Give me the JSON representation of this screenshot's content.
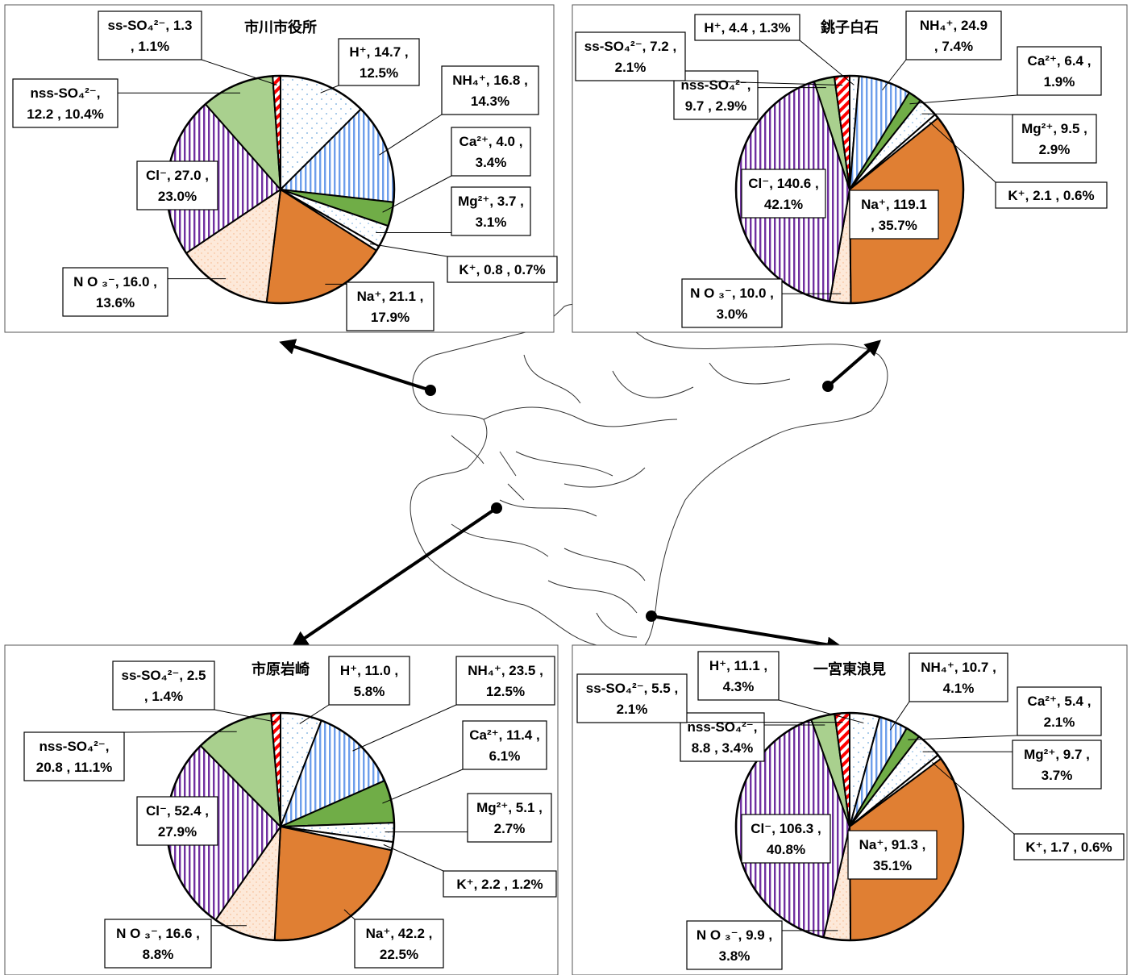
{
  "colors": {
    "H": "#ffffff",
    "NH4": "#9dc3e6",
    "Ca": "#70ad47",
    "Mg": "#ffffff",
    "K": "#ffffff",
    "Na": "#e07f33",
    "NO3": "#fde9d9",
    "Cl": "#7030a0",
    "nss": "#a9d08e",
    "ss": "#ff0000"
  },
  "chart_data": [
    {
      "type": "pie",
      "title": "市川市役所",
      "slices": [
        {
          "key": "H",
          "value": 14.7,
          "pct": 12.5,
          "lines": [
            "H⁺, 14.7 ,",
            "12.5%"
          ]
        },
        {
          "key": "NH4",
          "value": 16.8,
          "pct": 14.3,
          "lines": [
            "NH₄⁺, 16.8 ,",
            "14.3%"
          ]
        },
        {
          "key": "Ca",
          "value": 4.0,
          "pct": 3.4,
          "lines": [
            "Ca²⁺, 4.0 ,",
            "3.4%"
          ]
        },
        {
          "key": "Mg",
          "value": 3.7,
          "pct": 3.1,
          "lines": [
            "Mg²⁺, 3.7 ,",
            "3.1%"
          ]
        },
        {
          "key": "K",
          "value": 0.8,
          "pct": 0.7,
          "lines": [
            "K⁺, 0.8 , 0.7%"
          ]
        },
        {
          "key": "Na",
          "value": 21.1,
          "pct": 17.9,
          "lines": [
            "Na⁺, 21.1 ,",
            "17.9%"
          ]
        },
        {
          "key": "NO3",
          "value": 16.0,
          "pct": 13.6,
          "lines": [
            "N O ₃⁻, 16.0 ,",
            "13.6%"
          ]
        },
        {
          "key": "Cl",
          "value": 27.0,
          "pct": 23.0,
          "lines": [
            "Cl⁻, 27.0 ,",
            "23.0%"
          ]
        },
        {
          "key": "nss",
          "value": 12.2,
          "pct": 10.4,
          "lines": [
            "nss-SO₄²⁻,",
            "12.2 , 10.4%"
          ]
        },
        {
          "key": "ss",
          "value": 1.3,
          "pct": 1.1,
          "lines": [
            "ss-SO₄²⁻, 1.3",
            ", 1.1%"
          ]
        }
      ]
    },
    {
      "type": "pie",
      "title": "銚子白石",
      "slices": [
        {
          "key": "H",
          "value": 4.4,
          "pct": 1.3,
          "lines": [
            "H⁺, 4.4 , 1.3%"
          ]
        },
        {
          "key": "NH4",
          "value": 24.9,
          "pct": 7.4,
          "lines": [
            "NH₄⁺, 24.9",
            ", 7.4%"
          ]
        },
        {
          "key": "Ca",
          "value": 6.4,
          "pct": 1.9,
          "lines": [
            "Ca²⁺, 6.4 ,",
            "1.9%"
          ]
        },
        {
          "key": "Mg",
          "value": 9.5,
          "pct": 2.9,
          "lines": [
            "Mg²⁺, 9.5 ,",
            "2.9%"
          ]
        },
        {
          "key": "K",
          "value": 2.1,
          "pct": 0.6,
          "lines": [
            "K⁺, 2.1 , 0.6%"
          ]
        },
        {
          "key": "Na",
          "value": 119.1,
          "pct": 35.7,
          "lines": [
            "Na⁺, 119.1",
            ", 35.7%"
          ]
        },
        {
          "key": "NO3",
          "value": 10.0,
          "pct": 3.0,
          "lines": [
            "N O ₃⁻, 10.0 ,",
            "3.0%"
          ]
        },
        {
          "key": "Cl",
          "value": 140.6,
          "pct": 42.1,
          "lines": [
            "Cl⁻, 140.6 ,",
            "42.1%"
          ]
        },
        {
          "key": "nss",
          "value": 9.7,
          "pct": 2.9,
          "lines": [
            "nss-SO₄²⁻,",
            "9.7 , 2.9%"
          ]
        },
        {
          "key": "ss",
          "value": 7.2,
          "pct": 2.1,
          "lines": [
            "ss-SO₄²⁻, 7.2 ,",
            "2.1%"
          ]
        }
      ]
    },
    {
      "type": "pie",
      "title": "市原岩崎",
      "slices": [
        {
          "key": "H",
          "value": 11.0,
          "pct": 5.8,
          "lines": [
            "H⁺, 11.0 ,",
            "5.8%"
          ]
        },
        {
          "key": "NH4",
          "value": 23.5,
          "pct": 12.5,
          "lines": [
            "NH₄⁺, 23.5 ,",
            "12.5%"
          ]
        },
        {
          "key": "Ca",
          "value": 11.4,
          "pct": 6.1,
          "lines": [
            "Ca²⁺, 11.4 ,",
            "6.1%"
          ]
        },
        {
          "key": "Mg",
          "value": 5.1,
          "pct": 2.7,
          "lines": [
            "Mg²⁺, 5.1 ,",
            "2.7%"
          ]
        },
        {
          "key": "K",
          "value": 2.2,
          "pct": 1.2,
          "lines": [
            "K⁺, 2.2 , 1.2%"
          ]
        },
        {
          "key": "Na",
          "value": 42.2,
          "pct": 22.5,
          "lines": [
            "Na⁺, 42.2 ,",
            "22.5%"
          ]
        },
        {
          "key": "NO3",
          "value": 16.6,
          "pct": 8.8,
          "lines": [
            "N O ₃⁻, 16.6 ,",
            "8.8%"
          ]
        },
        {
          "key": "Cl",
          "value": 52.4,
          "pct": 27.9,
          "lines": [
            "Cl⁻, 52.4 ,",
            "27.9%"
          ]
        },
        {
          "key": "nss",
          "value": 20.8,
          "pct": 11.1,
          "lines": [
            "nss-SO₄²⁻,",
            "20.8 , 11.1%"
          ]
        },
        {
          "key": "ss",
          "value": 2.5,
          "pct": 1.4,
          "lines": [
            "ss-SO₄²⁻, 2.5",
            ", 1.4%"
          ]
        }
      ]
    },
    {
      "type": "pie",
      "title": "一宮東浪見",
      "slices": [
        {
          "key": "H",
          "value": 11.1,
          "pct": 4.3,
          "lines": [
            "H⁺, 11.1 ,",
            "4.3%"
          ]
        },
        {
          "key": "NH4",
          "value": 10.7,
          "pct": 4.1,
          "lines": [
            "NH₄⁺, 10.7 ,",
            "4.1%"
          ]
        },
        {
          "key": "Ca",
          "value": 5.4,
          "pct": 2.1,
          "lines": [
            "Ca²⁺, 5.4 ,",
            "2.1%"
          ]
        },
        {
          "key": "Mg",
          "value": 9.7,
          "pct": 3.7,
          "lines": [
            "Mg²⁺, 9.7 ,",
            "3.7%"
          ]
        },
        {
          "key": "K",
          "value": 1.7,
          "pct": 0.6,
          "lines": [
            "K⁺, 1.7 , 0.6%"
          ]
        },
        {
          "key": "Na",
          "value": 91.3,
          "pct": 35.1,
          "lines": [
            "Na⁺, 91.3 ,",
            "35.1%"
          ]
        },
        {
          "key": "NO3",
          "value": 9.9,
          "pct": 3.8,
          "lines": [
            "N O ₃⁻, 9.9 ,",
            "3.8%"
          ]
        },
        {
          "key": "Cl",
          "value": 106.3,
          "pct": 40.8,
          "lines": [
            "Cl⁻, 106.3 ,",
            "40.8%"
          ]
        },
        {
          "key": "nss",
          "value": 8.8,
          "pct": 3.4,
          "lines": [
            "nss-SO₄²⁻,",
            "8.8 , 3.4%"
          ]
        },
        {
          "key": "ss",
          "value": 5.5,
          "pct": 2.1,
          "lines": [
            "ss-SO₄²⁻, 5.5 ,",
            "2.1%"
          ]
        }
      ]
    }
  ]
}
